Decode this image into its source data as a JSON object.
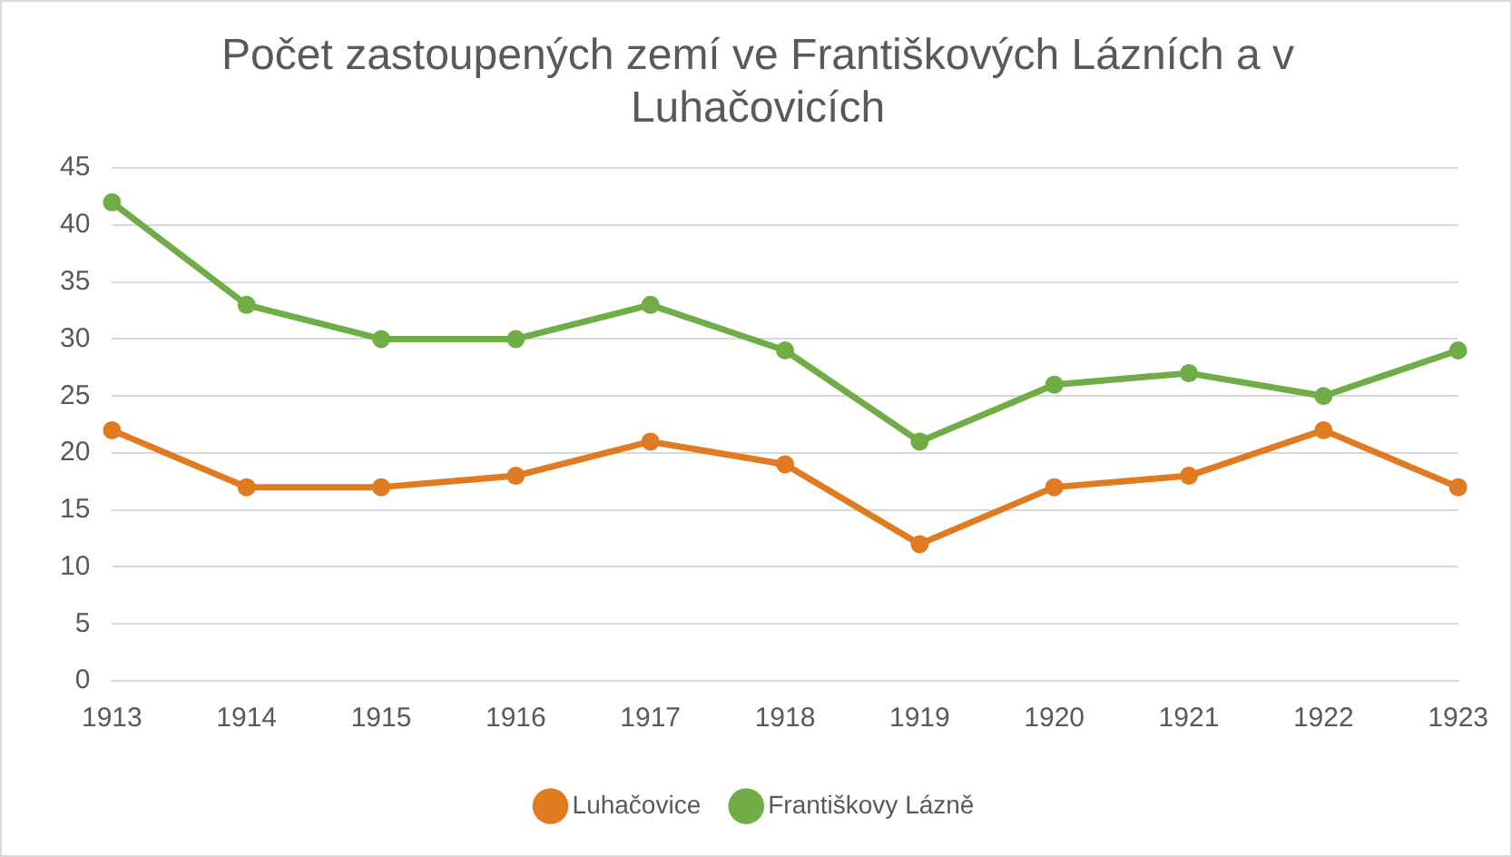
{
  "chart_data": {
    "type": "line",
    "title": "Počet zastoupených zemí ve Františkových Lázních a v Luhačovicích",
    "categories": [
      "1913",
      "1914",
      "1915",
      "1916",
      "1917",
      "1918",
      "1919",
      "1920",
      "1921",
      "1922",
      "1923"
    ],
    "series": [
      {
        "name": "Luhačovice",
        "color": "#e07b22",
        "values": [
          22,
          17,
          17,
          18,
          21,
          19,
          12,
          17,
          18,
          22,
          17
        ]
      },
      {
        "name": "Františkovy Lázně",
        "color": "#70ad47",
        "values": [
          42,
          33,
          30,
          30,
          33,
          29,
          21,
          26,
          27,
          25,
          29
        ]
      }
    ],
    "ylim": [
      0,
      45
    ],
    "yticks": [
      0,
      5,
      10,
      15,
      20,
      25,
      30,
      35,
      40,
      45
    ],
    "grid": "y",
    "legend": "bottom",
    "marker": "circle",
    "line_style": "solid"
  }
}
